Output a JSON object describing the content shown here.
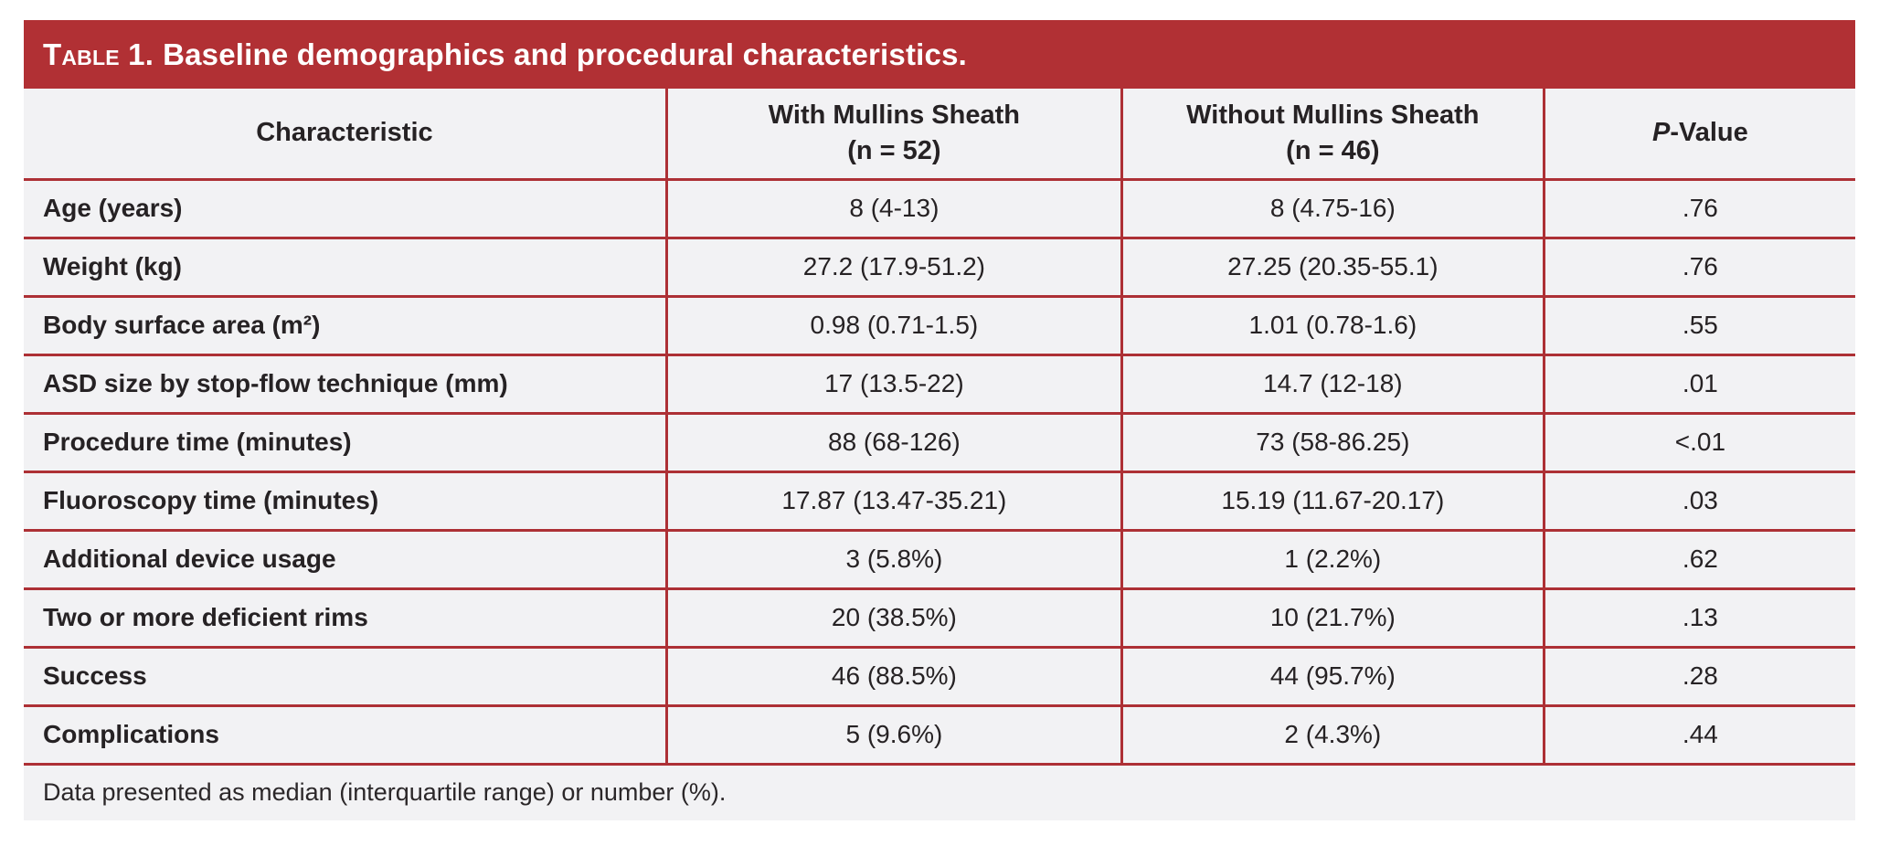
{
  "title": {
    "prefix": "Table 1.",
    "text": "Baseline demographics and procedural characteristics."
  },
  "columns": {
    "characteristic": "Characteristic",
    "with_sheath": {
      "line1": "With Mullins Sheath",
      "line2": "(n = 52)"
    },
    "without_sheath": {
      "line1": "Without Mullins Sheath",
      "line2": "(n = 46)"
    },
    "p_value": {
      "italic": "P",
      "rest": "-Value"
    }
  },
  "rows": [
    {
      "label": "Age (years)",
      "with_sheath": "8 (4-13)",
      "without_sheath": "8 (4.75-16)",
      "p": ".76"
    },
    {
      "label": "Weight (kg)",
      "with_sheath": "27.2 (17.9-51.2)",
      "without_sheath": "27.25 (20.35-55.1)",
      "p": ".76"
    },
    {
      "label": "Body surface area (m²)",
      "with_sheath": "0.98 (0.71-1.5)",
      "without_sheath": "1.01 (0.78-1.6)",
      "p": ".55"
    },
    {
      "label": "ASD size by stop-flow technique (mm)",
      "with_sheath": "17 (13.5-22)",
      "without_sheath": "14.7 (12-18)",
      "p": ".01"
    },
    {
      "label": "Procedure time (minutes)",
      "with_sheath": "88 (68-126)",
      "without_sheath": "73 (58-86.25)",
      "p": "<.01"
    },
    {
      "label": "Fluoroscopy time (minutes)",
      "with_sheath": "17.87 (13.47-35.21)",
      "without_sheath": "15.19 (11.67-20.17)",
      "p": ".03"
    },
    {
      "label": "Additional device usage",
      "with_sheath": "3 (5.8%)",
      "without_sheath": "1 (2.2%)",
      "p": ".62"
    },
    {
      "label": "Two or more deficient rims",
      "with_sheath": "20 (38.5%)",
      "without_sheath": "10 (21.7%)",
      "p": ".13"
    },
    {
      "label": "Success",
      "with_sheath": "46 (88.5%)",
      "without_sheath": "44 (95.7%)",
      "p": ".28"
    },
    {
      "label": "Complications",
      "with_sheath": "5 (9.6%)",
      "without_sheath": "2 (4.3%)",
      "p": ".44"
    }
  ],
  "footnote": "Data presented as median (interquartile range) or number (%).",
  "colors": {
    "accent_red": "#B13034",
    "divider_red": "#AD3035",
    "body_bg": "#F2F2F4",
    "text": "#262224",
    "title_text": "#FFFFFF"
  }
}
